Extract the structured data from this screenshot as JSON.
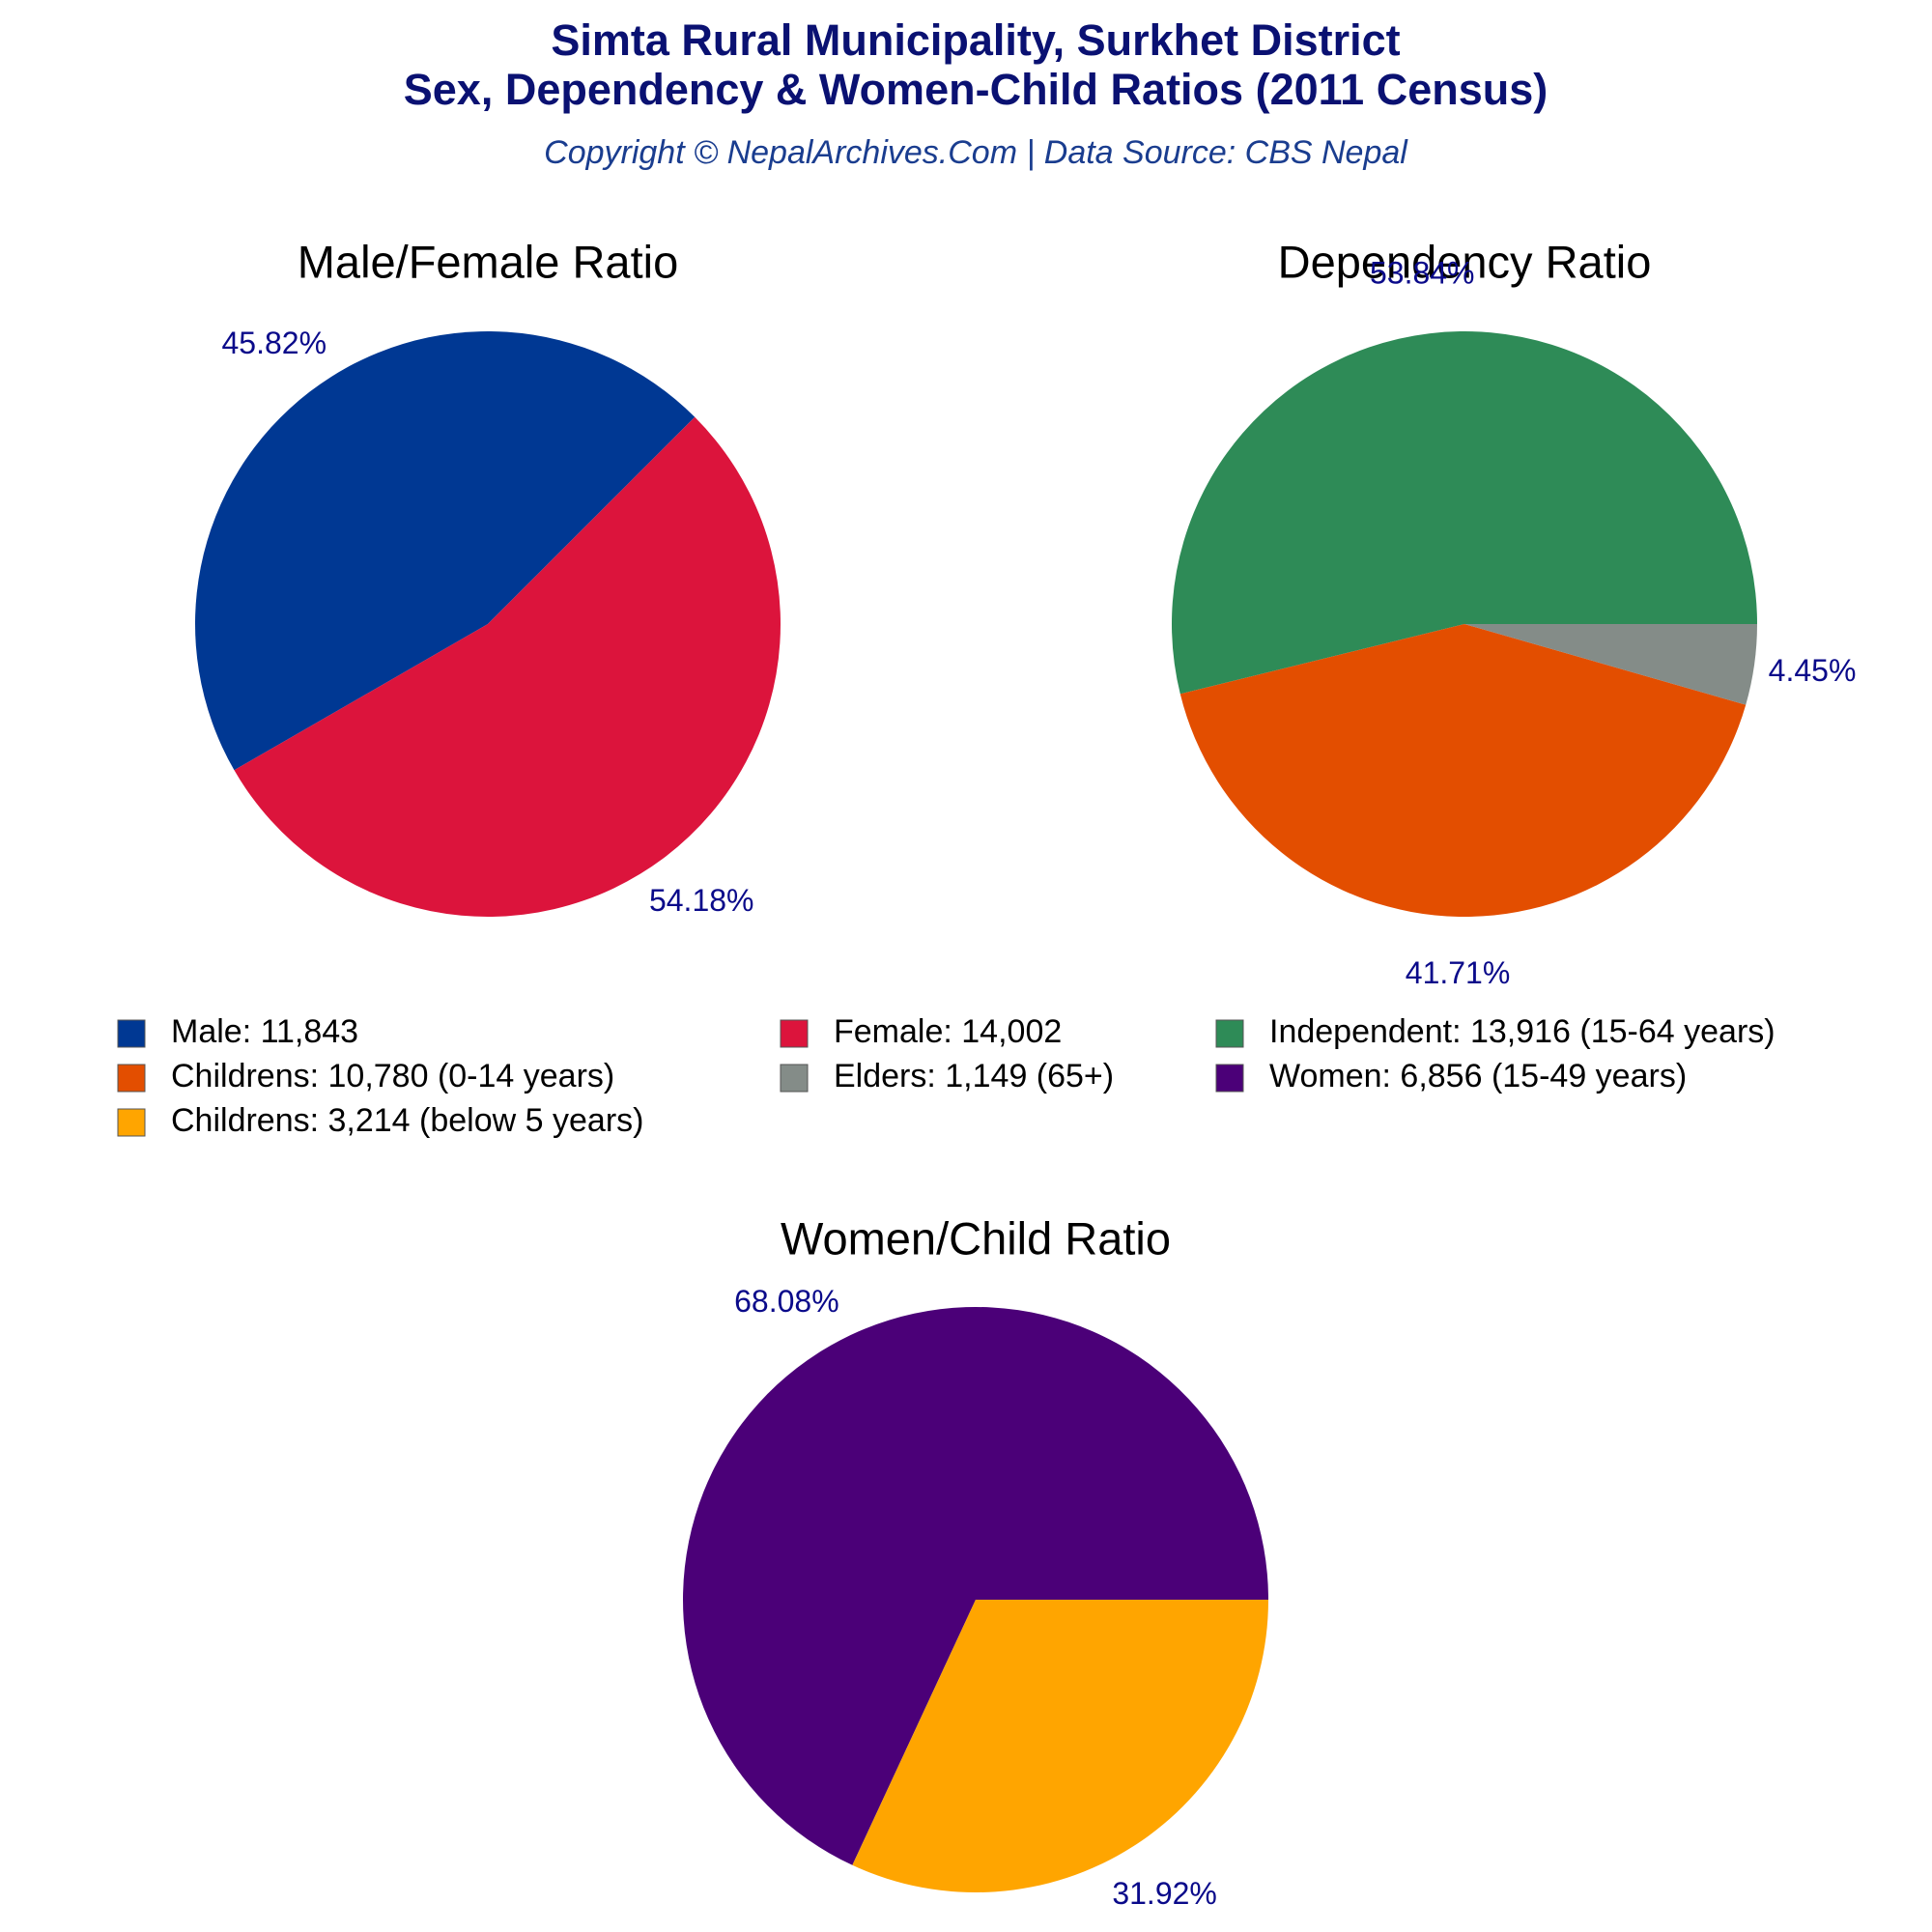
{
  "title": [
    "Simta Rural Municipality, Surkhet District",
    "Sex, Dependency & Women-Child Ratios (2011 Census)"
  ],
  "subtitle": "Copyright © NepalArchives.Com | Data Source: CBS Nepal",
  "chart_data": [
    {
      "type": "pie",
      "title": "Male/Female Ratio",
      "values": [
        45.82,
        54.18
      ],
      "value_labels": [
        "45.82%",
        "54.18%"
      ],
      "labels": [
        "Male: 11,843",
        "Female: 14,002"
      ],
      "colors": [
        "#003893",
        "#dc143c"
      ]
    },
    {
      "type": "pie",
      "title": "Dependency Ratio",
      "values": [
        53.84,
        41.71,
        4.45
      ],
      "value_labels": [
        "53.84%",
        "41.71%",
        "4.45%"
      ],
      "labels": [
        "Independent: 13,916 (15-64 years)",
        "Childrens: 10,780 (0-14 years)",
        "Elders: 1,149 (65+)"
      ],
      "colors": [
        "#2e8b57",
        "#e34e00",
        "#848c88"
      ]
    },
    {
      "type": "pie",
      "title": "Women/Child Ratio",
      "values": [
        68.08,
        31.92
      ],
      "value_labels": [
        "68.08%",
        "31.92%"
      ],
      "labels": [
        "Women: 6,856 (15-49 years)",
        "Childrens: 3,214 (below 5 years)"
      ],
      "colors": [
        "#4b0078",
        "#ffa500"
      ]
    }
  ]
}
